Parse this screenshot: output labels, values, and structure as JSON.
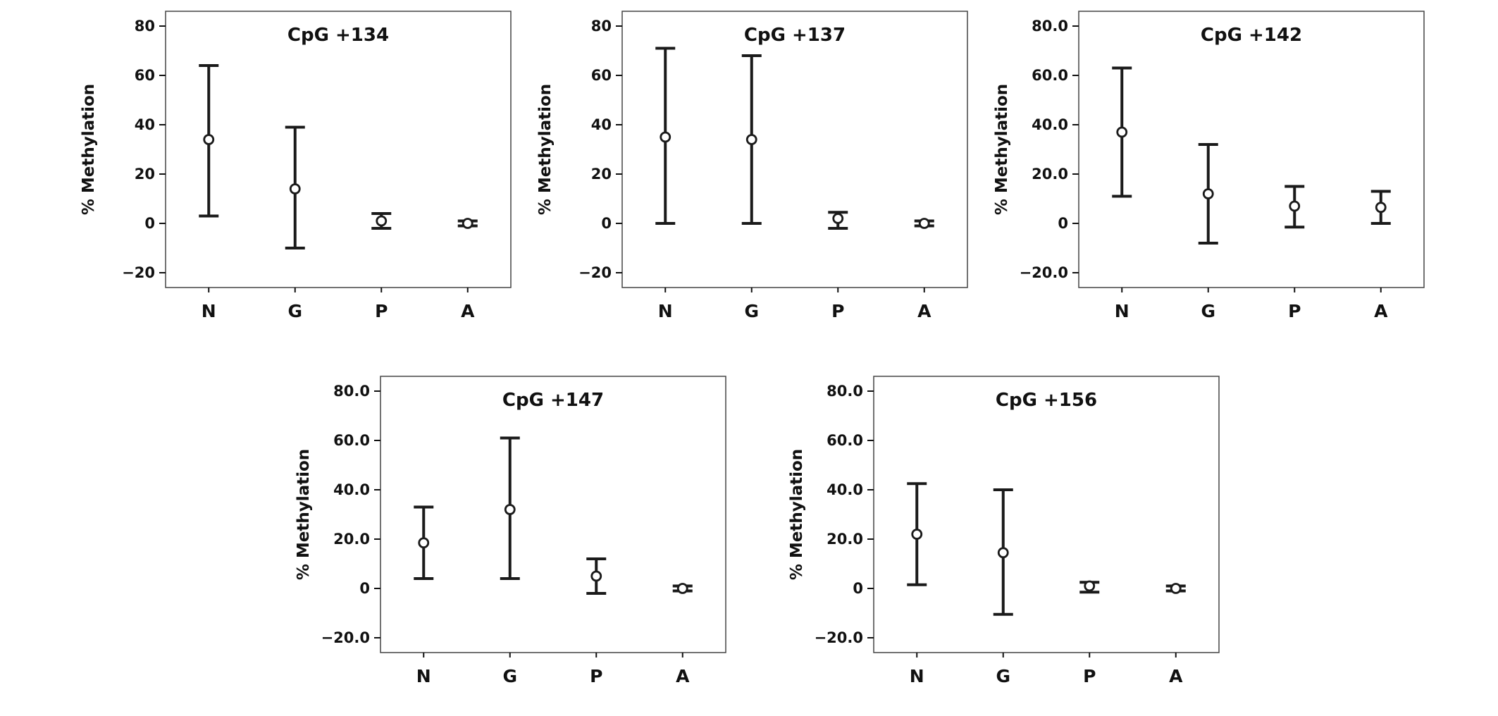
{
  "figure": {
    "description_title": "CpG site methylation error bar plots",
    "background": "#ffffff"
  },
  "colors": {
    "ink": "#1a1a1a",
    "axis_text": "#111111",
    "box_border": "#444444",
    "marker_fill": "#ffffff"
  },
  "chart_data": [
    {
      "type": "errorbar",
      "title": "CpG +134",
      "ylabel": "% Methylation",
      "categories": [
        "N",
        "G",
        "P",
        "A"
      ],
      "means": [
        34,
        14,
        1,
        0
      ],
      "ci_low": [
        3,
        -10,
        -2,
        -1
      ],
      "ci_high": [
        64,
        39,
        4,
        1
      ],
      "yticks": [
        80,
        60,
        40,
        20,
        0,
        -20
      ],
      "ytick_labels": [
        "80",
        "60",
        "40",
        "20",
        "0",
        "−20"
      ],
      "ylim": [
        -26,
        86
      ],
      "grid": false,
      "legend": "none"
    },
    {
      "type": "errorbar",
      "title": "CpG +137",
      "ylabel": "% Methylation",
      "categories": [
        "N",
        "G",
        "P",
        "A"
      ],
      "means": [
        35,
        34,
        2,
        0
      ],
      "ci_low": [
        0,
        0,
        -2,
        -1
      ],
      "ci_high": [
        71,
        68,
        4.5,
        1
      ],
      "yticks": [
        80,
        60,
        40,
        20,
        0,
        -20
      ],
      "ytick_labels": [
        "80",
        "60",
        "40",
        "20",
        "0",
        "−20"
      ],
      "ylim": [
        -26,
        86
      ],
      "grid": false,
      "legend": "none"
    },
    {
      "type": "errorbar",
      "title": "CpG +142",
      "ylabel": "% Methylation",
      "categories": [
        "N",
        "G",
        "P",
        "A"
      ],
      "means": [
        37,
        12,
        7,
        6.5
      ],
      "ci_low": [
        11,
        -8,
        -1.5,
        0
      ],
      "ci_high": [
        63,
        32,
        15,
        13
      ],
      "yticks": [
        80,
        60,
        40,
        20,
        0,
        -20
      ],
      "ytick_labels": [
        "80.0",
        "60.0",
        "40.0",
        "20.0",
        "0",
        "−20.0"
      ],
      "ylim": [
        -26,
        86
      ],
      "grid": false,
      "legend": "none"
    },
    {
      "type": "errorbar",
      "title": "CpG +147",
      "ylabel": "% Methylation",
      "categories": [
        "N",
        "G",
        "P",
        "A"
      ],
      "means": [
        18.5,
        32,
        5,
        0
      ],
      "ci_low": [
        4,
        4,
        -2,
        -1
      ],
      "ci_high": [
        33,
        61,
        12,
        1
      ],
      "yticks": [
        80,
        60,
        40,
        20,
        0,
        -20
      ],
      "ytick_labels": [
        "80.0",
        "60.0",
        "40.0",
        "20.0",
        "0",
        "−20.0"
      ],
      "ylim": [
        -26,
        86
      ],
      "grid": false,
      "legend": "none"
    },
    {
      "type": "errorbar",
      "title": "CpG +156",
      "ylabel": "% Methylation",
      "categories": [
        "N",
        "G",
        "P",
        "A"
      ],
      "means": [
        22,
        14.5,
        1,
        0
      ],
      "ci_low": [
        1.5,
        -10.5,
        -1.5,
        -1
      ],
      "ci_high": [
        42.5,
        40,
        2.5,
        1
      ],
      "yticks": [
        80,
        60,
        40,
        20,
        0,
        -20
      ],
      "ytick_labels": [
        "80.0",
        "60.0",
        "40.0",
        "20.0",
        "0",
        "−20.0"
      ],
      "ylim": [
        -26,
        86
      ],
      "grid": false,
      "legend": "none"
    }
  ]
}
